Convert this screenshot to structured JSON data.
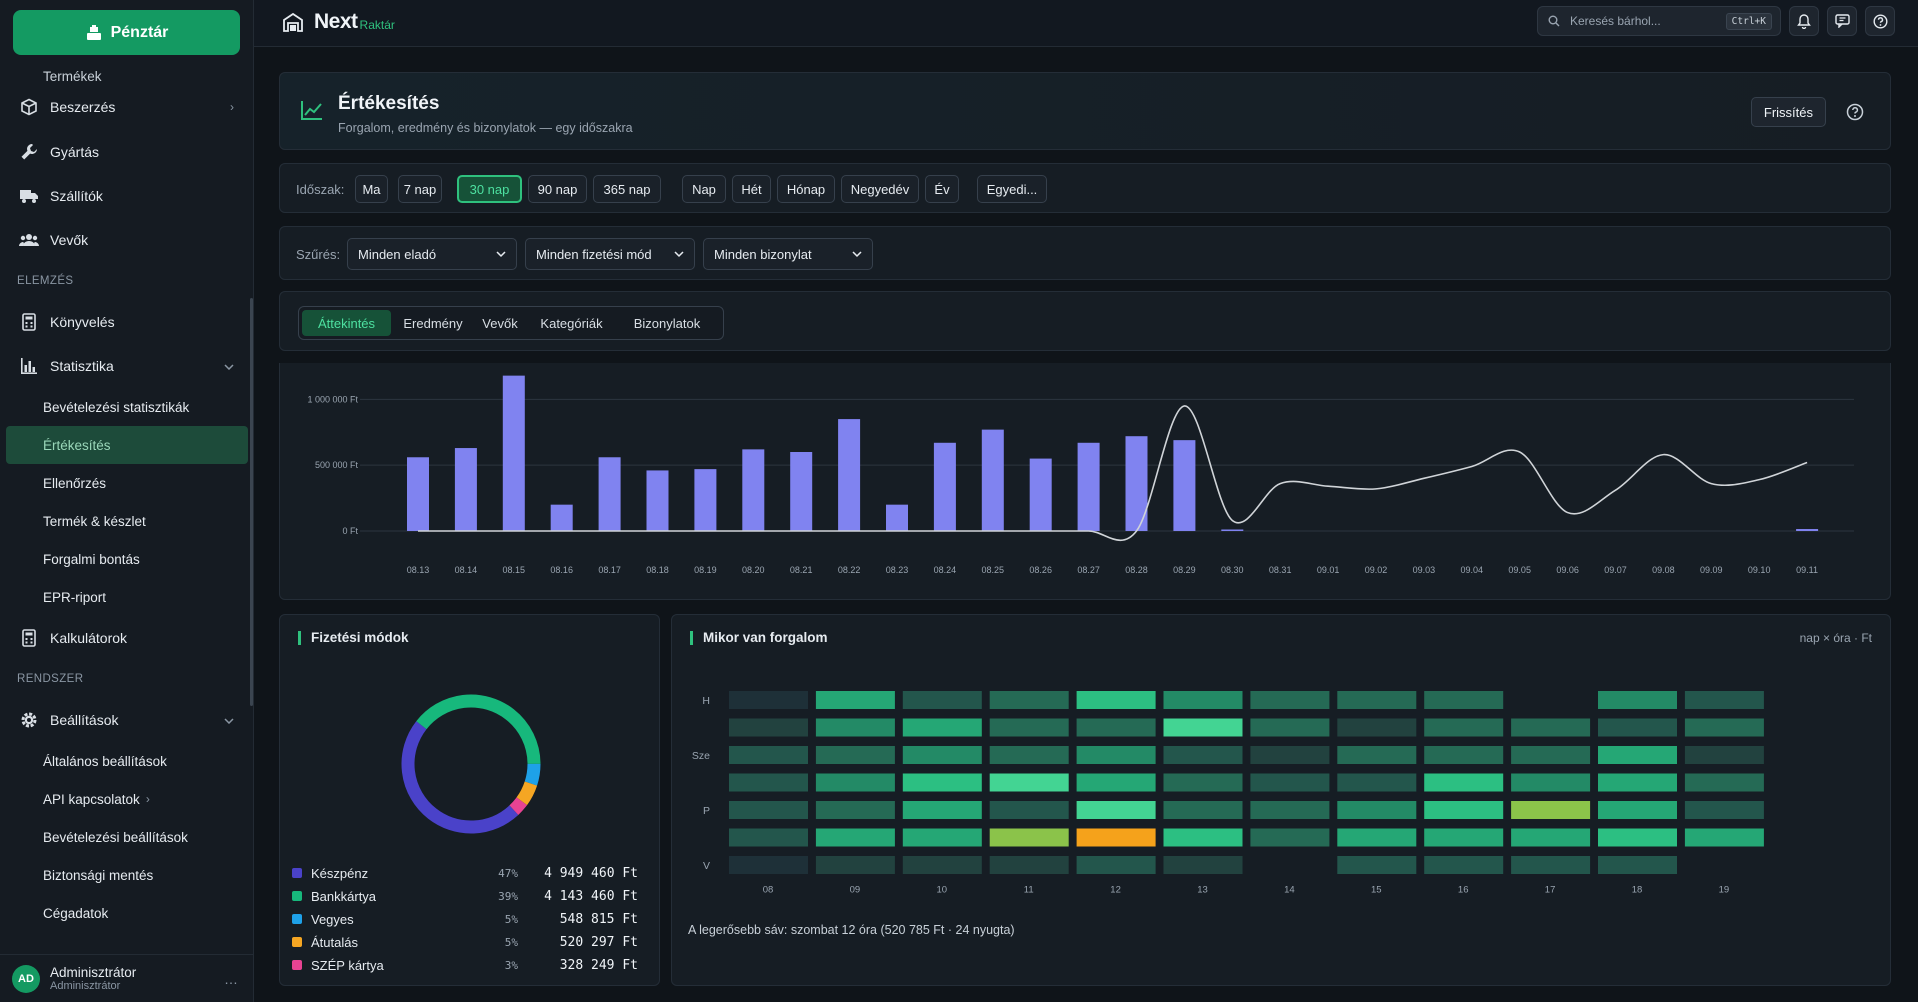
{
  "sidebar": {
    "pos_label": "Pénztár",
    "partial_item": "Termékek",
    "items_top": [
      {
        "name": "beszerzes",
        "label": "Beszerzés",
        "icon": "box-icon",
        "chevron": "›"
      },
      {
        "name": "gyartas",
        "label": "Gyártás",
        "icon": "wrench-icon"
      },
      {
        "name": "szallitok",
        "label": "Szállítók",
        "icon": "truck-icon"
      },
      {
        "name": "vevok",
        "label": "Vevők",
        "icon": "users-icon"
      }
    ],
    "section_elemzes": "ELEMZÉS",
    "konyveles": "Könyvelés",
    "statisztika": "Statisztika",
    "stat_sub": [
      "Bevételezési statisztikák",
      "Értékesítés",
      "Ellenőrzés",
      "Termék & készlet",
      "Forgalmi bontás",
      "EPR-riport"
    ],
    "kalkulatorok": "Kalkulátorok",
    "section_rendszer": "RENDSZER",
    "beallitasok": "Beállítások",
    "settings_sub": [
      "Általános beállítások",
      "API kapcsolatok",
      "Bevételezési beállítások",
      "Biztonsági mentés",
      "Cégadatok"
    ],
    "api_chevron": "›",
    "user": {
      "initials": "AD",
      "name": "Adminisztrátor",
      "role": "Adminisztrátor",
      "more": "…"
    }
  },
  "topbar": {
    "logo_main": "Next",
    "logo_sub": "Raktár",
    "search_placeholder": "Keresés bárhol...",
    "search_kbd": "Ctrl+K"
  },
  "header": {
    "title": "Értékesítés",
    "subtitle": "Forgalom, eredmény és bizonylatok — egy időszakra",
    "refresh": "Frissítés"
  },
  "period": {
    "label": "Időszak:",
    "ranges": [
      "Ma",
      "7 nap",
      "30 nap",
      "90 nap",
      "365 nap"
    ],
    "active": "30 nap",
    "grains": [
      "Nap",
      "Hét",
      "Hónap",
      "Negyedév",
      "Év"
    ],
    "custom": "Egyedi..."
  },
  "filter": {
    "label": "Szűrés:",
    "seller": "Minden eladó",
    "payment": "Minden fizetési mód",
    "document": "Minden bizonylat"
  },
  "tabs": [
    "Áttekintés",
    "Eredmény",
    "Vevők",
    "Kategóriák",
    "Bizonylatok"
  ],
  "chart_data": {
    "type": "bar",
    "categories": [
      "08.13",
      "08.14",
      "08.15",
      "08.16",
      "08.17",
      "08.18",
      "08.19",
      "08.20",
      "08.21",
      "08.22",
      "08.23",
      "08.24",
      "08.25",
      "08.26",
      "08.27",
      "08.28",
      "08.29",
      "08.30",
      "08.31",
      "09.01",
      "09.02",
      "09.03",
      "09.04",
      "09.05",
      "09.06",
      "09.07",
      "09.08",
      "09.09",
      "09.10",
      "09.11"
    ],
    "values": [
      560000,
      630000,
      1180000,
      200000,
      560000,
      460000,
      470000,
      620000,
      600000,
      850000,
      200000,
      670000,
      770000,
      550000,
      670000,
      720000,
      690000,
      10000,
      0,
      0,
      0,
      0,
      0,
      0,
      0,
      0,
      0,
      0,
      0,
      15000
    ],
    "line_values": [
      0,
      0,
      0,
      0,
      0,
      0,
      0,
      0,
      0,
      0,
      0,
      0,
      0,
      0,
      0,
      0,
      950000,
      80000,
      360000,
      340000,
      320000,
      400000,
      490000,
      600000,
      140000,
      310000,
      580000,
      360000,
      390000,
      520000
    ],
    "ylim": [
      0,
      1200000
    ],
    "yticks": [
      {
        "v": 0,
        "label": "0 Ft"
      },
      {
        "v": 500000,
        "label": "500 000 Ft"
      },
      {
        "v": 1000000,
        "label": "1 000 000 Ft"
      }
    ],
    "bar_color": "#8083f0",
    "line_color": "#d0d4d8",
    "grid": true
  },
  "payments": {
    "title": "Fizetési módok",
    "items": [
      {
        "label": "Készpénz",
        "pct": "47%",
        "amount": "4 949 460 Ft",
        "color": "#4a42c9",
        "value": 47
      },
      {
        "label": "Bankkártya",
        "pct": "39%",
        "amount": "4 143 460 Ft",
        "color": "#17b87c",
        "value": 39
      },
      {
        "label": "Vegyes",
        "pct": "5%",
        "amount": "548 815 Ft",
        "color": "#1ea1e8",
        "value": 5
      },
      {
        "label": "Átutalás",
        "pct": "5%",
        "amount": "520 297 Ft",
        "color": "#f5a623",
        "value": 5
      },
      {
        "label": "SZÉP kártya",
        "pct": "3%",
        "amount": "328 249 Ft",
        "color": "#e84393",
        "value": 3
      }
    ]
  },
  "heatmap": {
    "title": "Mikor van forgalom",
    "note": "nap × óra · Ft",
    "days": [
      "H",
      "",
      "Sze",
      "",
      "P",
      "",
      "V"
    ],
    "hours": [
      "08",
      "09",
      "10",
      "11",
      "12",
      "13",
      "14",
      "15",
      "16",
      "17",
      "18",
      "19"
    ],
    "values": [
      [
        0.05,
        0.55,
        0.3,
        0.35,
        0.65,
        0.45,
        0.4,
        0.4,
        0.35,
        0,
        0.5,
        0.25
      ],
      [
        0.2,
        0.5,
        0.6,
        0.35,
        0.4,
        0.8,
        0.35,
        0.2,
        0.35,
        0.35,
        0.3,
        0.35
      ],
      [
        0.3,
        0.4,
        0.45,
        0.35,
        0.45,
        0.3,
        0.2,
        0.35,
        0.35,
        0.35,
        0.55,
        0.2
      ],
      [
        0.25,
        0.45,
        0.7,
        0.8,
        0.6,
        0.4,
        0.3,
        0.3,
        0.65,
        0.45,
        0.55,
        0.4
      ],
      [
        0.25,
        0.4,
        0.55,
        0.3,
        0.75,
        0.35,
        0.35,
        0.5,
        0.7,
        0.88,
        0.55,
        0.3
      ],
      [
        0.25,
        0.6,
        0.6,
        0.9,
        1,
        0.65,
        0.4,
        0.55,
        0.55,
        0.6,
        0.65,
        0.6
      ],
      [
        0.1,
        0.2,
        0.2,
        0.15,
        0.25,
        0.2,
        0,
        0.3,
        0.3,
        0.25,
        0.3,
        0
      ]
    ],
    "caption": "A legerősebb sáv: szombat 12 óra (520 785 Ft · 24 nyugta)"
  },
  "colors": {
    "accent": "#2fc17e",
    "background": "#0f1419"
  }
}
